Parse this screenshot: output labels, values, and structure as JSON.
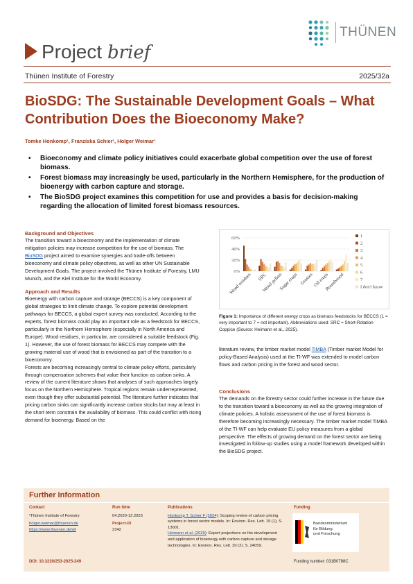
{
  "header": {
    "logo_text": "THÜNEN",
    "doc_type_main": "Project ",
    "doc_type_italic": "brief",
    "institute": "Thünen Institute of Forestry",
    "issue": "2025/32a"
  },
  "title": "BioSDG: The Sustainable Development Goals – What Contribution Does the Bioeconomy Make?",
  "authors": "Tomke Honkomp¹, Franziska Schier¹, Holger Weimar¹",
  "bullets": [
    "Bioeconomy and climate policy initiatives could exacerbate global competition over the use of forest biomass.",
    "Forest biomass may increasingly be used, particularly in the Northern Hemisphere, for the production of bioenergy with carbon capture and storage.",
    "The BioSDG project examines this competition for use and provides a basis for decision-making regarding the allocation of limited forest biomass resources."
  ],
  "background": {
    "heading": "Background and Objectives",
    "text_a": "The transition toward a bioeconomy and the implementation of climate mitigation policies may increase competition for the use of biomass. The ",
    "link": "BioSDG",
    "text_b": " project aimed to examine synergies and trade-offs between bioeconomy and climate policy objectives, as well as other UN Sustainable Development Goals. The project involved the Thünen Institute of Forestry, LMU Munich, and the Kiel Institute for the World Economy."
  },
  "approach": {
    "heading": "Approach and Results",
    "text_1": "Bioenergy with carbon capture and storage (BECCS) is a key component of global strategies to limit climate change. To explore potential development pathways for BECCS, a global expert survey was conducted. According to the experts, forest biomass could play an important role as a feedstock for BECCS, particularly in the Northern Hemisphere (especially in North America and Europe). Wood residues, in particular, are considered a suitable feedstock (Fig. 1). However, the use of forest biomass for BECCS may compete with the growing material use of wood that is envisioned as part of the transition to a bioeconomy.",
    "text_2": "Forests are becoming increasingly central to climate policy efforts, particularly through compensation schemes that value their function as carbon sinks. A review of the current literature shows that analyses of such approaches largely focus on the Northern Hemisphere. Tropical regions remain underrepresented, even though they offer substantial potential. The literature further indicates that pricing carbon sinks can significantly increase carbon stocks but may at least in the short term constrain the availability of biomass. This could conflict with rising demand for bioenergy. Based on the"
  },
  "right": {
    "para1_a": "literature review, the timber market model ",
    "para1_link": "TiMBA",
    "para1_b": " (Timber market Model for policy-Based Analysis) used at the TI-WF was extended to model carbon flows and carbon pricing in the forest and wood sector.",
    "conclusions_heading": "Conclusions",
    "conclusions_text": "The demands on the forestry sector could further increase in the future due to the transition toward a bioeconomy as well as the growing integration of climate policies. A holistic assessment of the use of forest biomass is therefore becoming increasingly necessary. The timber market model TiMBA of the TI-WF can help evaluate EU policy measures from a global perspective. The effects of growing demand on the forest sector are being investigated in follow-up studies using a model framework developed within the BioSDG project."
  },
  "figure_caption": {
    "label": "Figure 1:",
    "text": " Importance of different energy crops as biomass feedstocks for BECCS (1 = very important to 7 = not important). Abbreviations used: SRC = Short-Rotation Coppice (Source: Heimann et al., 2025)."
  },
  "chart_data": {
    "type": "bar",
    "categories": [
      "Wood residues",
      "SRC",
      "Wood pellets",
      "Sugar crops",
      "Grasses",
      "Oil crops",
      "Roundwood"
    ],
    "y_ticks": [
      "60%",
      "40%",
      "20%",
      "0%"
    ],
    "ylim": [
      0,
      60
    ],
    "series": [
      {
        "name": "1",
        "color": "#7a3a12",
        "values": [
          46,
          10,
          8,
          3,
          3,
          2,
          3
        ]
      },
      {
        "name": "2",
        "color": "#b3531f",
        "values": [
          22,
          22,
          17,
          6,
          10,
          6,
          5
        ]
      },
      {
        "name": "3",
        "color": "#d67434",
        "values": [
          12,
          17,
          18,
          10,
          12,
          9,
          7
        ]
      },
      {
        "name": "4",
        "color": "#e79a5b",
        "values": [
          8,
          13,
          15,
          13,
          15,
          12,
          10
        ]
      },
      {
        "name": "5",
        "color": "#f1bf5a",
        "values": [
          4,
          10,
          10,
          14,
          13,
          15,
          12
        ]
      },
      {
        "name": "6",
        "color": "#f5d68f",
        "values": [
          3,
          8,
          9,
          18,
          13,
          18,
          18
        ]
      },
      {
        "name": "7",
        "color": "#f9e8c6",
        "values": [
          2,
          6,
          7,
          22,
          14,
          22,
          30
        ]
      },
      {
        "name": "I don't know",
        "color": "#e8e2dc",
        "values": [
          3,
          14,
          16,
          14,
          20,
          16,
          15
        ]
      }
    ],
    "legend_position": "right"
  },
  "further": {
    "title": "Further Information",
    "contact_heading": "Contact",
    "contact_inst": "¹Thünen Institute of Forestry",
    "contact_email": "holger.weimar@thuenen.de",
    "contact_web": "https://www.thuenen.de/wf",
    "runtime_heading": "Run time",
    "runtime": "04.2020-12.2023",
    "project_id_heading": "Project-ID",
    "project_id": "2342",
    "publications_heading": "Publications",
    "pub1_link": "Honkomp T, Schier F (2024)",
    "pub1_text": ": Scoping review of carbon pricing systems in forest sector models. In: Environ. Res. Lett. 19 (1), S. 13001.",
    "pub2_link": "Heimann et al. (2025)",
    "pub2_text": ": Expert projections on the development and application of bioenergy with carbon capture and storage technologies. In: Environ. Res. Lett. 20 (2), S. 24059.",
    "funding_heading": "Funding",
    "funder_line1": "Bundesministerium",
    "funder_line2": "für Bildung",
    "funder_line3": "und Forschung",
    "funding_number": "Funding number: 031B0788C",
    "doi": "DOI: 10.3220/253-2025-249"
  }
}
